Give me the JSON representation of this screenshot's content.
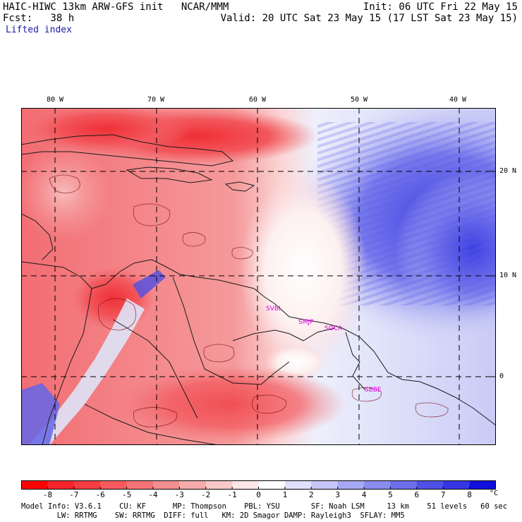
{
  "header": {
    "model_line": "HAIC-HIWC 13km ARW-GFS init   NCAR/MMM",
    "init_line": "Init: 06 UTC Fri 22 May 15",
    "fcst_line": "Fcst:   38 h",
    "valid_line": "Valid: 20 UTC Sat 23 May 15 (17 LST Sat 23 May 15)",
    "field": "Lifted index"
  },
  "map": {
    "longitudes": [
      "80 W",
      "70 W",
      "60 W",
      "50 W",
      "40 W"
    ],
    "latitudes": [
      "20 N",
      "10 N",
      "0"
    ],
    "stations": [
      "SVBI",
      "SMJP",
      "SOCA",
      "SBBE"
    ],
    "colors": {
      "unstable_max": "#e8141c",
      "neutral": "#ffffff",
      "stable_max": "#1a1ae8",
      "station": "#e000e0"
    }
  },
  "colorbar": {
    "labels": [
      "-8",
      "-7",
      "-6",
      "-5",
      "-4",
      "-3",
      "-2",
      "-1",
      "0",
      "1",
      "2",
      "3",
      "4",
      "5",
      "6",
      "7",
      "8"
    ],
    "unit": "°C",
    "colors": [
      "#ff0000",
      "#f5242a",
      "#f53c40",
      "#f55a5c",
      "#f57476",
      "#f48e90",
      "#f6aaab",
      "#f9c8c8",
      "#fde6e6",
      "#ffffff",
      "#dfe0fb",
      "#c4c5f7",
      "#a6a8f3",
      "#8a8cef",
      "#6c6eeb",
      "#4e50e6",
      "#3436e3",
      "#1010dd"
    ]
  },
  "footer": {
    "line1": "Model Info: V3.6.1    CU: KF      MP: Thompson    PBL: YSU       SF: Noah LSM     13 km    51 levels   60 sec",
    "line2": "        LW: RRTMG    SW: RRTMG  DIFF: full   KM: 2D Smagor DAMP: Rayleigh3  SFLAY: MM5"
  }
}
